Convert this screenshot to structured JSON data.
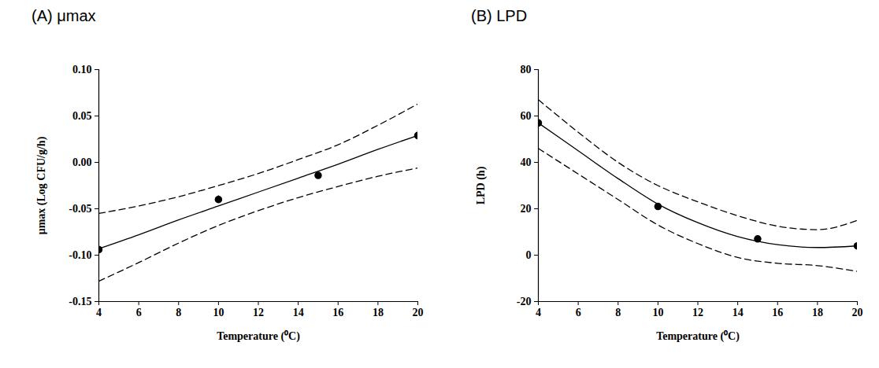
{
  "chart_data": [
    {
      "type": "scatter",
      "title": "(A) μmax",
      "x_label": "Temperature (⁰C)",
      "y_label": "μmax (Log CFU/g/h)",
      "xlim": [
        4,
        20
      ],
      "xticks": [
        4,
        6,
        8,
        10,
        12,
        14,
        16,
        18,
        20
      ],
      "ylim": [
        -0.15,
        0.1
      ],
      "yticks": [
        {
          "value": -0.15,
          "label": "-0.15"
        },
        {
          "value": -0.1,
          "label": "-0.10"
        },
        {
          "value": -0.05,
          "label": "-0.05"
        },
        {
          "value": 0,
          "label": "0.00"
        },
        {
          "value": 0.05,
          "label": "0.05"
        },
        {
          "value": 0.1,
          "label": "0.10"
        }
      ],
      "series": [
        {
          "type": "scatter",
          "marker": "circle",
          "color": "#000000",
          "x": [
            4,
            10,
            15,
            20
          ],
          "values": [
            -0.094,
            -0.04,
            -0.014,
            0.029
          ],
          "errors": [
            0.001,
            0.004,
            0.002,
            0.005
          ]
        },
        {
          "type": "line",
          "line_style": "solid",
          "color": "#000000",
          "x": [
            4,
            6,
            8,
            10,
            12,
            14,
            16,
            18,
            20
          ],
          "values": [
            -0.093,
            -0.078,
            -0.062,
            -0.047,
            -0.032,
            -0.017,
            -0.002,
            0.014,
            0.029
          ]
        },
        {
          "type": "line",
          "line_style": "dashed",
          "color": "#000000",
          "x": [
            4,
            6,
            8,
            10,
            12,
            14,
            16,
            18,
            20
          ],
          "values": [
            -0.055,
            -0.047,
            -0.037,
            -0.025,
            -0.012,
            0.003,
            0.019,
            0.04,
            0.063
          ]
        },
        {
          "type": "line",
          "line_style": "dashed",
          "color": "#000000",
          "x": [
            4,
            6,
            8,
            10,
            12,
            14,
            16,
            18,
            20
          ],
          "values": [
            -0.128,
            -0.108,
            -0.087,
            -0.068,
            -0.052,
            -0.038,
            -0.026,
            -0.015,
            -0.006
          ]
        }
      ]
    },
    {
      "type": "scatter",
      "title": "(B) LPD",
      "x_label": "Temperature (⁰C)",
      "y_label": "LPD (h)",
      "xlim": [
        4,
        20
      ],
      "xticks": [
        4,
        6,
        8,
        10,
        12,
        14,
        16,
        18,
        20
      ],
      "ylim": [
        -20,
        80
      ],
      "yticks": [
        -20,
        0,
        20,
        40,
        60,
        80
      ],
      "series": [
        {
          "type": "scatter",
          "marker": "circle",
          "color": "#000000",
          "x": [
            4,
            10,
            15,
            20
          ],
          "values": [
            57,
            21,
            7,
            4
          ],
          "errors": [
            1,
            0.8,
            0.8,
            0.8
          ]
        },
        {
          "type": "line",
          "line_style": "solid",
          "color": "#000000",
          "x": [
            4,
            6,
            8,
            10,
            12,
            14,
            16,
            18,
            20
          ],
          "values": [
            57,
            45,
            33,
            22,
            14,
            8,
            4.5,
            3.3,
            4
          ]
        },
        {
          "type": "line",
          "line_style": "dashed",
          "color": "#000000",
          "x": [
            4,
            6,
            8,
            10,
            12,
            14,
            16,
            18,
            20
          ],
          "values": [
            67,
            53,
            40,
            30,
            23,
            17,
            12.5,
            11,
            15
          ]
        },
        {
          "type": "line",
          "line_style": "dashed",
          "color": "#000000",
          "x": [
            4,
            6,
            8,
            10,
            12,
            14,
            16,
            18,
            20
          ],
          "values": [
            46,
            35,
            24,
            13,
            5,
            -1,
            -3.5,
            -4.5,
            -7
          ]
        }
      ]
    }
  ]
}
